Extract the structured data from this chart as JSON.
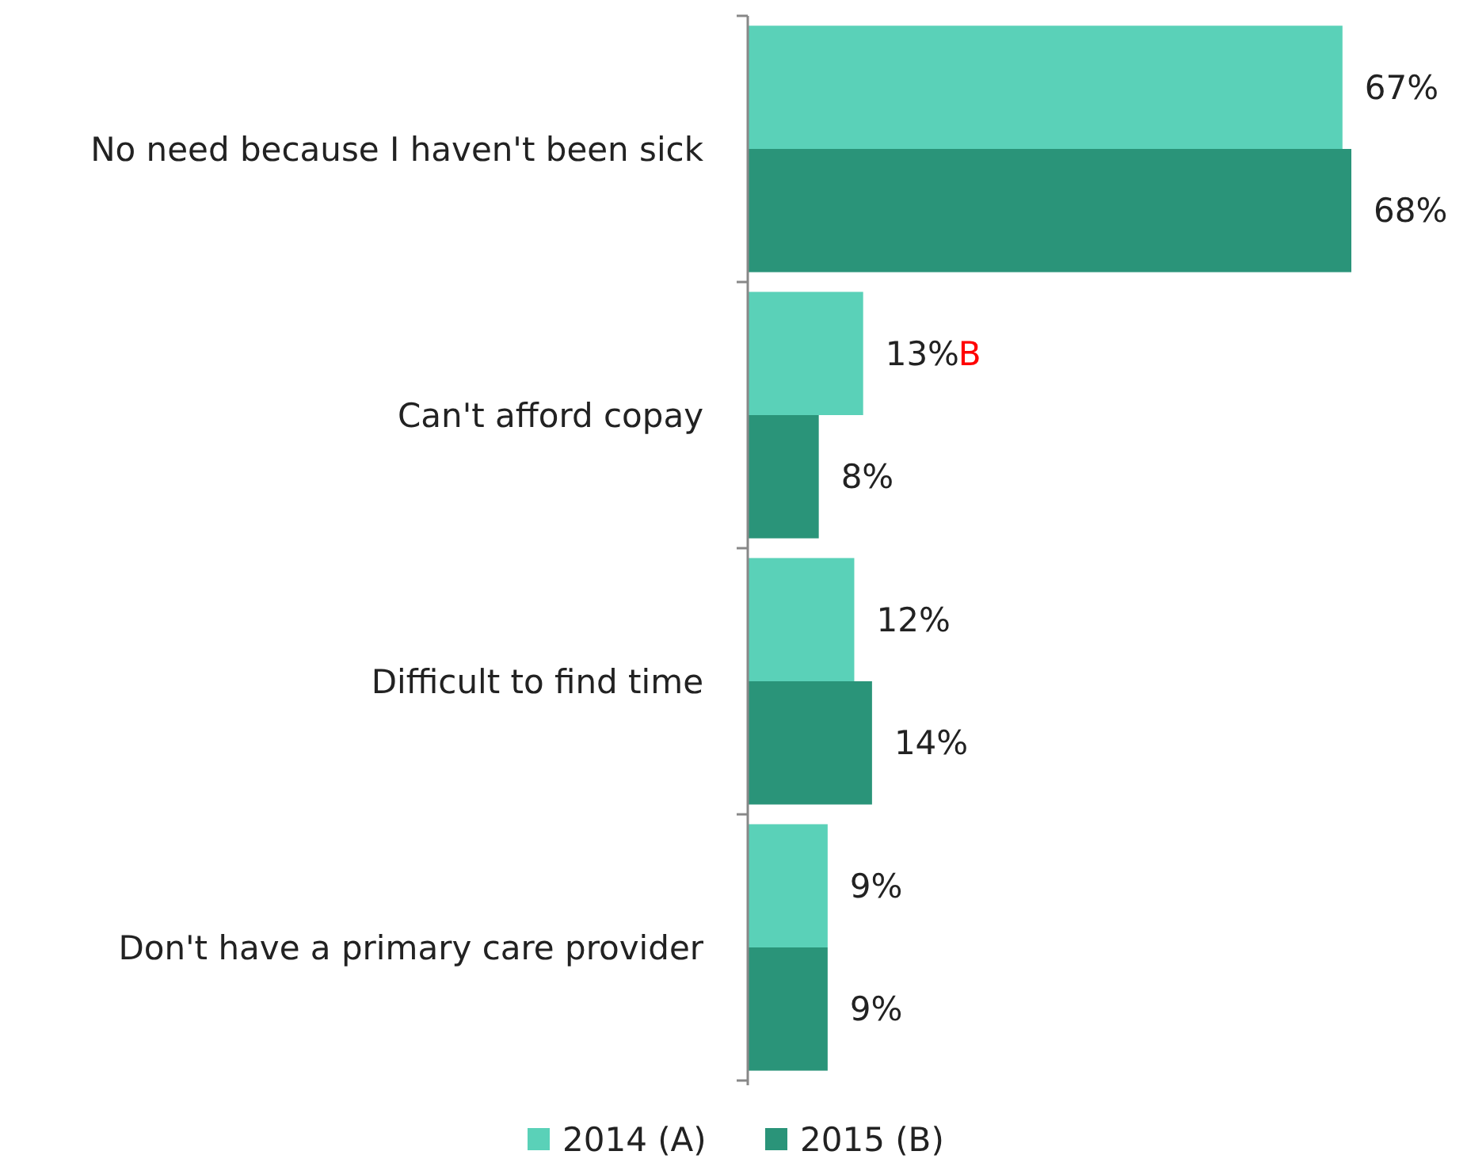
{
  "chart_data": {
    "type": "bar",
    "orientation": "horizontal",
    "categories": [
      "No need because I haven't been sick",
      "Can't afford copay",
      "Difficult to find time",
      "Don't have a primary care provider"
    ],
    "series": [
      {
        "name": "2014 (A)",
        "color": "#5ad1b8",
        "values": [
          67,
          13,
          12,
          9
        ],
        "value_labels": [
          "67%",
          "13%",
          "12%",
          "9%"
        ]
      },
      {
        "name": "2015 (B)",
        "color": "#2a9479",
        "values": [
          68,
          8,
          14,
          9
        ],
        "value_labels": [
          "68%",
          "8%",
          "14%",
          "9%"
        ]
      }
    ],
    "legend": "bottom",
    "annotations": [
      "B"
    ]
  }
}
